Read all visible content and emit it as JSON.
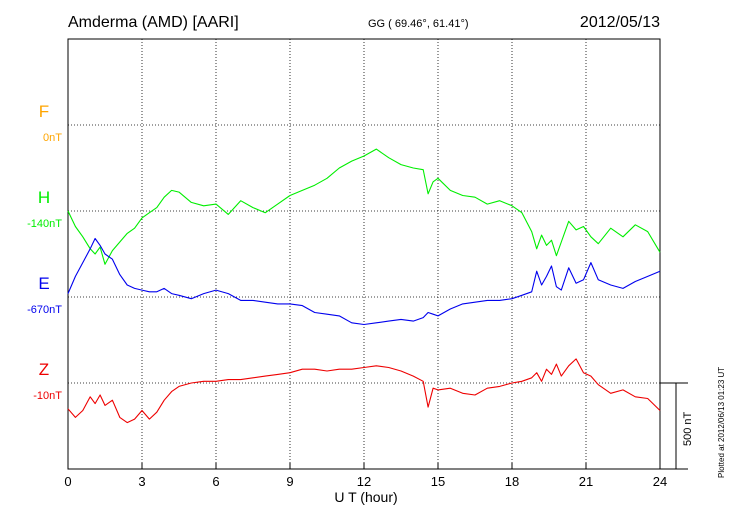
{
  "header": {
    "station": "Amderma (AMD)  [AARI]",
    "coords": "GG ( 69.46°,  61.41°)",
    "date": "2012/05/13"
  },
  "footer": {
    "plotted": "Plotted at 2012/06/13 01:23 UT"
  },
  "scale_label": "500 nT",
  "chart_data": {
    "type": "line",
    "xlabel": "U T (hour)",
    "xlim": [
      0,
      24
    ],
    "xticks": [
      0,
      3,
      6,
      9,
      12,
      15,
      18,
      21,
      24
    ],
    "grid": true,
    "scale_bar_nT": 500,
    "series": [
      {
        "name": "F",
        "offset_label": "0nT",
        "color": "#ffa500",
        "x": [],
        "y": []
      },
      {
        "name": "H",
        "offset_label": "-140nT",
        "color": "#00ee00",
        "x": [
          0,
          0.3,
          0.6,
          0.9,
          1.1,
          1.3,
          1.5,
          1.8,
          2.1,
          2.4,
          2.7,
          3.0,
          3.3,
          3.6,
          3.9,
          4.2,
          4.5,
          5.0,
          5.5,
          6.0,
          6.5,
          7.0,
          7.5,
          8.0,
          8.5,
          9.0,
          9.5,
          10.0,
          10.5,
          11.0,
          11.5,
          12.0,
          12.5,
          13.0,
          13.5,
          14.0,
          14.4,
          14.6,
          14.8,
          15.0,
          15.5,
          16.0,
          16.5,
          17.0,
          17.5,
          18.0,
          18.4,
          18.8,
          19.0,
          19.2,
          19.4,
          19.6,
          19.8,
          20.0,
          20.3,
          20.6,
          20.9,
          21.2,
          21.5,
          22.0,
          22.5,
          23.0,
          23.5,
          24.0
        ],
        "y": [
          0,
          -90,
          -150,
          -220,
          -250,
          -210,
          -310,
          -230,
          -180,
          -130,
          -100,
          -40,
          -10,
          20,
          80,
          120,
          110,
          50,
          30,
          40,
          -20,
          60,
          20,
          -10,
          40,
          90,
          120,
          150,
          190,
          250,
          290,
          320,
          360,
          310,
          270,
          250,
          240,
          100,
          170,
          190,
          120,
          90,
          80,
          40,
          60,
          30,
          -10,
          -120,
          -220,
          -140,
          -200,
          -170,
          -260,
          -180,
          -60,
          -110,
          -90,
          -150,
          -190,
          -100,
          -150,
          -80,
          -120,
          -240
        ]
      },
      {
        "name": "E",
        "offset_label": "-670nT",
        "color": "#0000ee",
        "x": [
          0,
          0.3,
          0.6,
          0.9,
          1.1,
          1.3,
          1.5,
          1.8,
          2.1,
          2.4,
          2.7,
          3.0,
          3.3,
          3.6,
          3.9,
          4.2,
          4.5,
          5.0,
          5.5,
          6.0,
          6.5,
          7.0,
          7.5,
          8.0,
          8.5,
          9.0,
          9.5,
          10.0,
          10.5,
          11.0,
          11.5,
          12.0,
          12.5,
          13.0,
          13.5,
          14.0,
          14.4,
          14.6,
          14.8,
          15.0,
          15.5,
          16.0,
          16.5,
          17.0,
          17.5,
          18.0,
          18.4,
          18.8,
          19.0,
          19.2,
          19.4,
          19.6,
          19.8,
          20.0,
          20.3,
          20.6,
          20.9,
          21.2,
          21.5,
          22.0,
          22.5,
          23.0,
          23.5,
          24.0
        ],
        "y": [
          20,
          120,
          200,
          280,
          340,
          300,
          250,
          220,
          130,
          70,
          50,
          40,
          30,
          30,
          50,
          20,
          10,
          -10,
          20,
          40,
          20,
          -20,
          -20,
          -30,
          -40,
          -40,
          -50,
          -90,
          -100,
          -110,
          -150,
          -160,
          -150,
          -140,
          -130,
          -140,
          -120,
          -90,
          -100,
          -110,
          -70,
          -40,
          -30,
          -20,
          -20,
          -10,
          10,
          30,
          150,
          70,
          120,
          180,
          60,
          40,
          170,
          80,
          100,
          200,
          100,
          70,
          50,
          90,
          120,
          150
        ]
      },
      {
        "name": "Z",
        "offset_label": "-10nT",
        "color": "#ee0000",
        "x": [
          0,
          0.3,
          0.6,
          0.9,
          1.1,
          1.3,
          1.5,
          1.8,
          2.1,
          2.4,
          2.7,
          3.0,
          3.3,
          3.6,
          3.9,
          4.2,
          4.5,
          5.0,
          5.5,
          6.0,
          6.5,
          7.0,
          7.5,
          8.0,
          8.5,
          9.0,
          9.5,
          10.0,
          10.5,
          11.0,
          11.5,
          12.0,
          12.5,
          13.0,
          13.5,
          14.0,
          14.4,
          14.6,
          14.8,
          15.0,
          15.5,
          16.0,
          16.5,
          17.0,
          17.5,
          18.0,
          18.4,
          18.8,
          19.0,
          19.2,
          19.4,
          19.6,
          19.8,
          20.0,
          20.3,
          20.6,
          20.9,
          21.2,
          21.5,
          22.0,
          22.5,
          23.0,
          23.5,
          24.0
        ],
        "y": [
          -150,
          -200,
          -160,
          -80,
          -120,
          -70,
          -130,
          -100,
          -200,
          -230,
          -210,
          -160,
          -210,
          -170,
          -100,
          -50,
          -20,
          0,
          10,
          10,
          20,
          20,
          30,
          40,
          50,
          60,
          80,
          80,
          70,
          80,
          80,
          90,
          100,
          90,
          70,
          40,
          10,
          -140,
          -30,
          -40,
          -30,
          -60,
          -70,
          -30,
          -20,
          0,
          10,
          30,
          60,
          10,
          80,
          50,
          110,
          40,
          100,
          140,
          60,
          40,
          -10,
          -60,
          -40,
          -80,
          -90,
          -160
        ]
      }
    ]
  }
}
